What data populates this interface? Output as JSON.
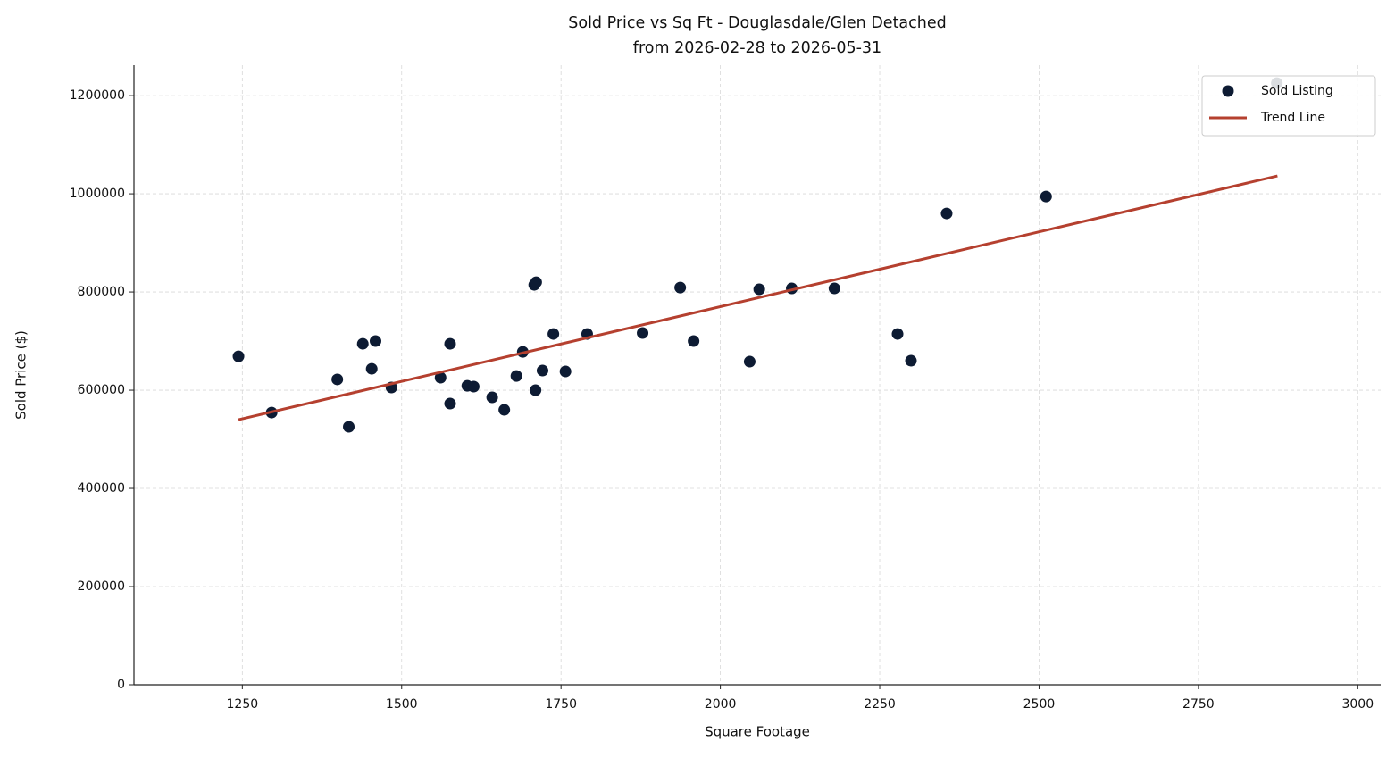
{
  "chart_data": {
    "type": "scatter",
    "title": "Sold Price vs Sq Ft - Douglasdale/Glen Detached",
    "subtitle": "from 2026-02-28 to 2026-05-31",
    "xlabel": "Square Footage",
    "ylabel": "Sold Price ($)",
    "series": [
      {
        "name": "Sold Listing",
        "type": "scatter",
        "color": "#0d1b33",
        "x": [
          1244,
          1296,
          1399,
          1417,
          1439,
          1453,
          1459,
          1484,
          1561,
          1576,
          1576,
          1603,
          1613,
          1642,
          1661,
          1680,
          1690,
          1708,
          1711,
          1710,
          1721,
          1738,
          1757,
          1791,
          1878,
          1937,
          1958,
          2046,
          2061,
          2112,
          2179,
          2278,
          2299,
          2355,
          2511,
          2873
        ],
        "values": [
          669000,
          554500,
          622000,
          525500,
          694500,
          643600,
          700000,
          605500,
          625500,
          694500,
          572700,
          609000,
          607300,
          585500,
          560000,
          629000,
          678000,
          814500,
          820000,
          600000,
          640000,
          714500,
          638200,
          714500,
          716400,
          809000,
          700000,
          658200,
          805500,
          807300,
          807300,
          714500,
          660000,
          960000,
          994500,
          1225500
        ]
      },
      {
        "name": "Trend Line",
        "type": "line",
        "color": "#b5402f",
        "x": [
          1244,
          2874
        ],
        "values": [
          540000,
          1036400
        ]
      }
    ],
    "xlim": [
      1080,
      3036
    ],
    "ylim": [
      0,
      1262000
    ],
    "xticks": [
      1250,
      1500,
      1750,
      2000,
      2250,
      2500,
      2750,
      3000
    ],
    "yticks": [
      0,
      200000,
      400000,
      600000,
      800000,
      1000000,
      1200000
    ],
    "grid": true,
    "legend": "upper right"
  }
}
